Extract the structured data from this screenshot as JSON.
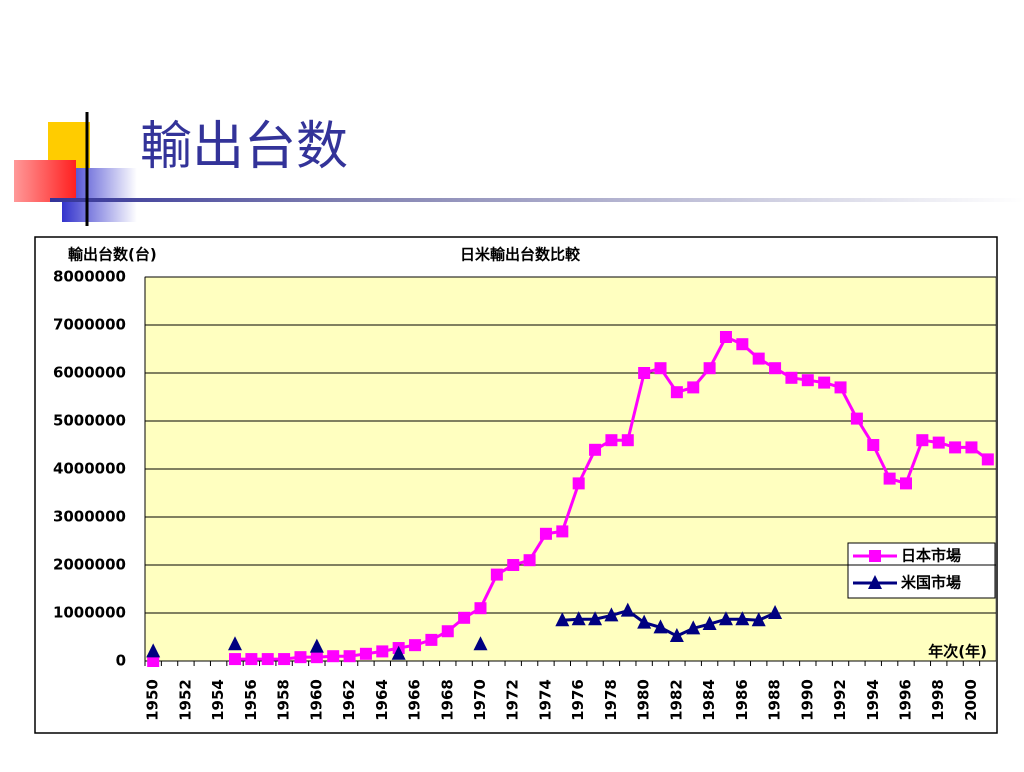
{
  "slide_title": "輸出台数",
  "chart_data": {
    "type": "line",
    "title": "日米輸出台数比較",
    "y_label": "輸出台数(台)",
    "x_label": "年次(年)",
    "categories": [
      "1950",
      null,
      "1952",
      null,
      "1954",
      null,
      "1956",
      null,
      "1958",
      null,
      "1960",
      null,
      "1962",
      null,
      "1964",
      null,
      "1966",
      null,
      "1968",
      null,
      "1970",
      null,
      "1972",
      null,
      "1974",
      null,
      "1976",
      null,
      "1978",
      null,
      "1980",
      null,
      "1982",
      null,
      "1984",
      null,
      "1986",
      null,
      "1988",
      null,
      "1990",
      null,
      "1992",
      null,
      "1994",
      null,
      "1996",
      null,
      "1998",
      null,
      "2000",
      null
    ],
    "series": [
      {
        "name": "日本市場",
        "color": "#ff00ff",
        "marker": "square",
        "values": [
          0,
          null,
          null,
          null,
          null,
          40000,
          40000,
          40000,
          40000,
          80000,
          80000,
          100000,
          100000,
          150000,
          200000,
          270000,
          330000,
          440000,
          620000,
          900000,
          1100000,
          1800000,
          2000000,
          2100000,
          2650000,
          2700000,
          3700000,
          4400000,
          4600000,
          4600000,
          6000000,
          6100000,
          5600000,
          5700000,
          6100000,
          6750000,
          6600000,
          6300000,
          6100000,
          5900000,
          5850000,
          5800000,
          5700000,
          5050000,
          4500000,
          3800000,
          3700000,
          4600000,
          4550000,
          4450000,
          4450000,
          4200000
        ]
      },
      {
        "name": "米国市場",
        "color": "#000080",
        "marker": "triangle",
        "values": [
          200000,
          null,
          null,
          null,
          null,
          350000,
          null,
          null,
          null,
          null,
          300000,
          null,
          null,
          null,
          null,
          150000,
          null,
          null,
          null,
          null,
          350000,
          null,
          null,
          null,
          null,
          850000,
          870000,
          870000,
          950000,
          1050000,
          800000,
          700000,
          520000,
          680000,
          770000,
          870000,
          870000,
          850000,
          1000000,
          null,
          null,
          null,
          null,
          null,
          null,
          null,
          null,
          null,
          null,
          null,
          null,
          null
        ]
      }
    ],
    "ylim": [
      0,
      8000000
    ],
    "yticks": [
      0,
      1000000,
      2000000,
      3000000,
      4000000,
      5000000,
      6000000,
      7000000,
      8000000
    ],
    "grid": true,
    "legend": "lower right",
    "plot_background": "#ffffc0"
  }
}
